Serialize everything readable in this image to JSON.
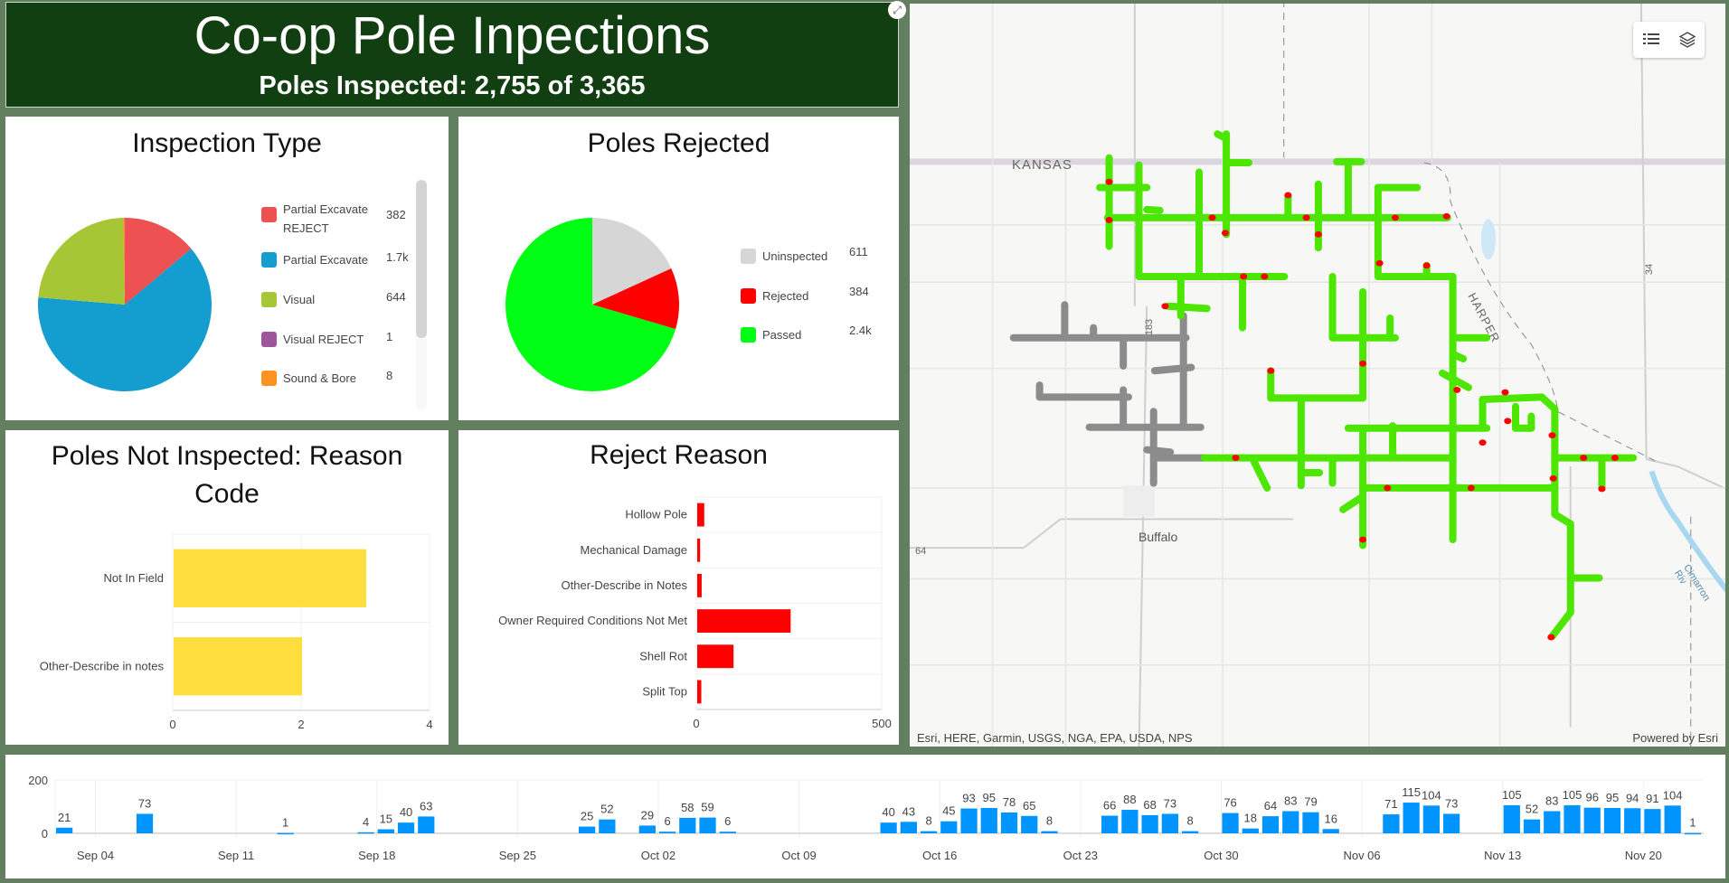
{
  "header": {
    "title": "Co-op Pole Inpections",
    "subtitle": "Poles Inspected: 2,755 of 3,365"
  },
  "inspection_type": {
    "title": "Inspection Type",
    "legend": [
      {
        "label": "Partial Excavate REJECT",
        "value_label": "382"
      },
      {
        "label": "Partial Excavate",
        "value_label": "1.7k"
      },
      {
        "label": "Visual",
        "value_label": "644"
      },
      {
        "label": "Visual REJECT",
        "value_label": "1"
      },
      {
        "label": "Sound & Bore",
        "value_label": "8"
      }
    ]
  },
  "poles_rejected": {
    "title": "Poles Rejected",
    "legend": [
      {
        "label": "Uninspected",
        "value_label": "611"
      },
      {
        "label": "Rejected",
        "value_label": "384"
      },
      {
        "label": "Passed",
        "value_label": "2.4k"
      }
    ]
  },
  "not_inspected": {
    "title": "Poles Not Inspected: Reason Code"
  },
  "reject_reason": {
    "title": "Reject Reason"
  },
  "map": {
    "labels": {
      "state": "KANSAS",
      "town": "Buffalo",
      "county": "HARPER",
      "hwy183": "183",
      "hwy34": "34",
      "hwy64": "64",
      "river": "Cimarron Riv"
    },
    "attribution": "Esri, HERE, Garmin, USGS, NGA, EPA, USDA, NPS",
    "powered_by": "Powered by Esri",
    "tools": [
      {
        "name": "legend",
        "icon": "list-icon"
      },
      {
        "name": "layers",
        "icon": "layers-icon"
      }
    ],
    "colors": {
      "passed": "#4ce600",
      "rejected": "#ff0000",
      "uninspected": "#8c8c8c"
    }
  },
  "chart_data": [
    {
      "type": "pie",
      "categories": [
        "Partial Excavate REJECT",
        "Partial Excavate",
        "Visual",
        "Visual REJECT",
        "Sound & Bore"
      ],
      "values": [
        382,
        1720,
        644,
        1,
        8
      ],
      "colors": [
        "#ed5151",
        "#149dcf",
        "#a7c636",
        "#9e559c",
        "#fc921f"
      ],
      "legend": "right"
    },
    {
      "type": "pie",
      "categories": [
        "Uninspected",
        "Rejected",
        "Passed"
      ],
      "values": [
        611,
        384,
        2370
      ],
      "colors": [
        "#d6d6d6",
        "#ff0000",
        "#00ff14"
      ],
      "legend": "right"
    },
    {
      "type": "bar",
      "orientation": "horizontal",
      "categories": [
        "Not In Field",
        "Other-Describe in notes"
      ],
      "values": [
        3,
        2
      ],
      "xlim": [
        0,
        4
      ],
      "ticks": [
        "0",
        "2",
        "4"
      ],
      "color": "#ffde3e"
    },
    {
      "type": "bar",
      "orientation": "horizontal",
      "categories": [
        "Hollow Pole",
        "Mechanical Damage",
        "Other-Describe in Notes",
        "Owner Required Conditions Not Met",
        "Shell Rot",
        "Split Top"
      ],
      "values": [
        19,
        8,
        12,
        252,
        98,
        11
      ],
      "xlim": [
        0,
        500
      ],
      "ticks": [
        "0",
        "500"
      ],
      "color": "#ff0000"
    },
    {
      "type": "bar",
      "xlim": [
        "Sep 02",
        "Nov 23"
      ],
      "ylim": [
        0,
        200
      ],
      "yticks": [
        "0",
        "200"
      ],
      "xticks": [
        "Sep 04",
        "Sep 11",
        "Sep 18",
        "Sep 25",
        "Oct 02",
        "Oct 09",
        "Oct 16",
        "Oct 23",
        "Oct 30",
        "Nov 06",
        "Nov 13",
        "Nov 20"
      ],
      "color": "#0094ff",
      "x": [
        "Sep 02",
        "Sep 06",
        "Sep 13",
        "Sep 17",
        "Sep 18",
        "Sep 19",
        "Sep 20",
        "Sep 28",
        "Sep 29",
        "Oct 01",
        "Oct 02",
        "Oct 03",
        "Oct 04",
        "Oct 05",
        "Oct 13",
        "Oct 14",
        "Oct 15",
        "Oct 16",
        "Oct 17",
        "Oct 18",
        "Oct 19",
        "Oct 20",
        "Oct 21",
        "Oct 24",
        "Oct 25",
        "Oct 26",
        "Oct 27",
        "Oct 28",
        "Oct 30",
        "Oct 31",
        "Nov 01",
        "Nov 02",
        "Nov 03",
        "Nov 04",
        "Nov 07",
        "Nov 08",
        "Nov 09",
        "Nov 10",
        "Nov 13",
        "Nov 14",
        "Nov 15",
        "Nov 16",
        "Nov 17",
        "Nov 18",
        "Nov 19",
        "Nov 20",
        "Nov 21",
        "Nov 22"
      ],
      "values": [
        21,
        73,
        1,
        4,
        15,
        40,
        63,
        25,
        52,
        29,
        6,
        58,
        59,
        6,
        40,
        43,
        8,
        45,
        93,
        95,
        78,
        65,
        8,
        66,
        88,
        68,
        73,
        8,
        76,
        18,
        64,
        83,
        79,
        16,
        71,
        115,
        104,
        73,
        105,
        52,
        83,
        105,
        96,
        95,
        94,
        91,
        104,
        1
      ]
    }
  ]
}
